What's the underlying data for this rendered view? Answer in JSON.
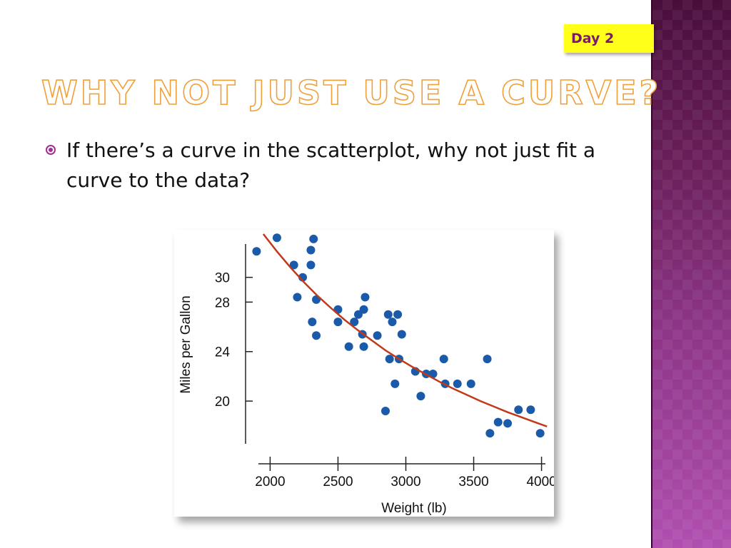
{
  "slide": {
    "badge": "Day 2",
    "title": "WHY NOT JUST USE A CURVE?",
    "bullet": "If there’s a curve in the scatterplot, why not just fit a curve to the data?"
  },
  "colors": {
    "badge_bg": "#ffff1a",
    "badge_text": "#7a1a6e",
    "title_outline": "#f0a03a",
    "bullet_icon": "#a12f93",
    "point": "#1a5aa8",
    "curve": "#c0391a",
    "side_panel": "#8d3587"
  },
  "chart_data": {
    "type": "scatter",
    "xlabel": "Weight (lb)",
    "ylabel": "Miles per Gallon",
    "xlim": [
      1840,
      4060
    ],
    "ylim": [
      16.2,
      33.5
    ],
    "xticks": [
      2000,
      2500,
      3000,
      3500,
      4000
    ],
    "yticks": [
      20,
      24,
      28,
      30
    ],
    "grid": false,
    "points": [
      [
        1900,
        32.1
      ],
      [
        2050,
        33.2
      ],
      [
        2175,
        31.0
      ],
      [
        2200,
        28.4
      ],
      [
        2240,
        30.0
      ],
      [
        2300,
        32.2
      ],
      [
        2300,
        31.0
      ],
      [
        2320,
        33.1
      ],
      [
        2310,
        26.4
      ],
      [
        2340,
        28.2
      ],
      [
        2340,
        25.3
      ],
      [
        2500,
        27.4
      ],
      [
        2500,
        26.4
      ],
      [
        2580,
        24.4
      ],
      [
        2620,
        26.4
      ],
      [
        2650,
        27.0
      ],
      [
        2680,
        25.4
      ],
      [
        2690,
        24.4
      ],
      [
        2690,
        27.4
      ],
      [
        2700,
        28.4
      ],
      [
        2790,
        25.3
      ],
      [
        2850,
        19.2
      ],
      [
        2870,
        27.0
      ],
      [
        2880,
        23.4
      ],
      [
        2900,
        26.4
      ],
      [
        2920,
        21.4
      ],
      [
        2940,
        27.0
      ],
      [
        2950,
        23.4
      ],
      [
        2970,
        25.4
      ],
      [
        3070,
        22.4
      ],
      [
        3110,
        20.4
      ],
      [
        3150,
        22.2
      ],
      [
        3200,
        22.2
      ],
      [
        3280,
        23.4
      ],
      [
        3290,
        21.4
      ],
      [
        3380,
        21.4
      ],
      [
        3480,
        21.4
      ],
      [
        3600,
        23.4
      ],
      [
        3620,
        17.4
      ],
      [
        3680,
        18.3
      ],
      [
        3750,
        18.2
      ],
      [
        3830,
        19.3
      ],
      [
        3920,
        19.3
      ],
      [
        3990,
        17.4
      ]
    ],
    "curve": [
      [
        1950,
        33.5
      ],
      [
        2050,
        32.1
      ],
      [
        2150,
        30.8
      ],
      [
        2250,
        29.6
      ],
      [
        2350,
        28.5
      ],
      [
        2450,
        27.5
      ],
      [
        2550,
        26.55
      ],
      [
        2650,
        25.7
      ],
      [
        2750,
        24.9
      ],
      [
        2850,
        24.1
      ],
      [
        2950,
        23.4
      ],
      [
        3050,
        22.75
      ],
      [
        3150,
        22.15
      ],
      [
        3250,
        21.55
      ],
      [
        3350,
        21.0
      ],
      [
        3450,
        20.5
      ],
      [
        3550,
        20.0
      ],
      [
        3650,
        19.55
      ],
      [
        3750,
        19.1
      ],
      [
        3850,
        18.7
      ],
      [
        3950,
        18.3
      ],
      [
        4040,
        17.95
      ]
    ]
  }
}
